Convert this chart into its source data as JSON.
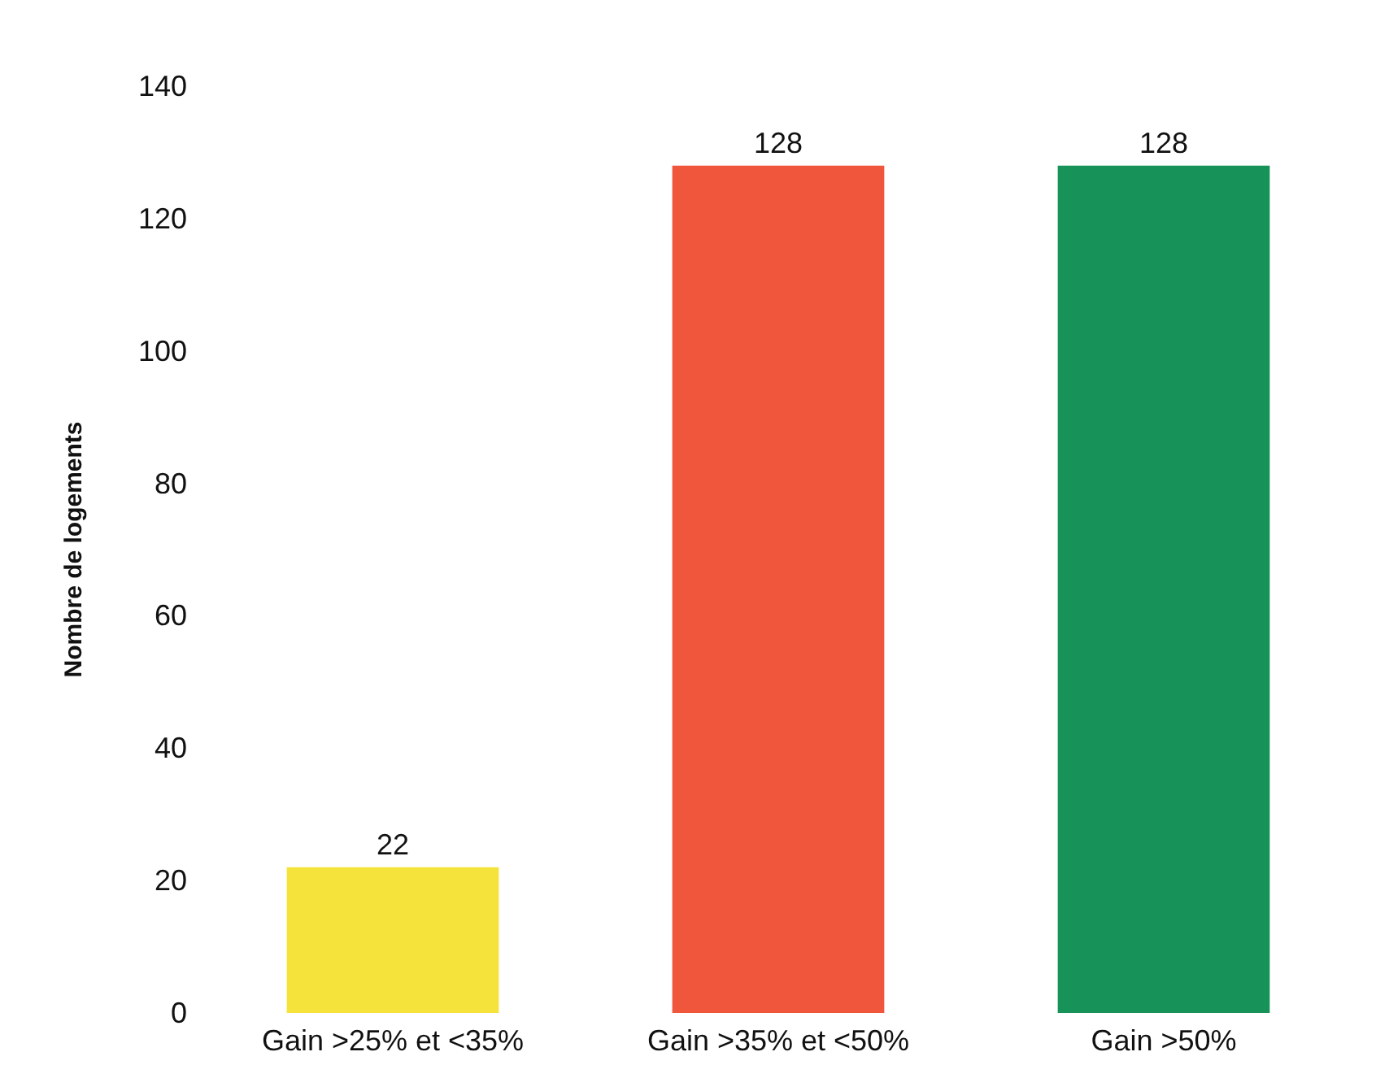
{
  "chart_data": {
    "type": "bar",
    "ylabel": "Nombre de logements",
    "categories": [
      "Gain >25% et <35%",
      "Gain >35% et <50%",
      "Gain >50%"
    ],
    "values": [
      22,
      128,
      128
    ],
    "colors": [
      "#f5e33c",
      "#ef563c",
      "#17935a"
    ],
    "ylim": [
      0,
      140
    ],
    "yticks": [
      0,
      20,
      40,
      60,
      80,
      100,
      120,
      140
    ],
    "grid": false,
    "data_labels": true
  }
}
